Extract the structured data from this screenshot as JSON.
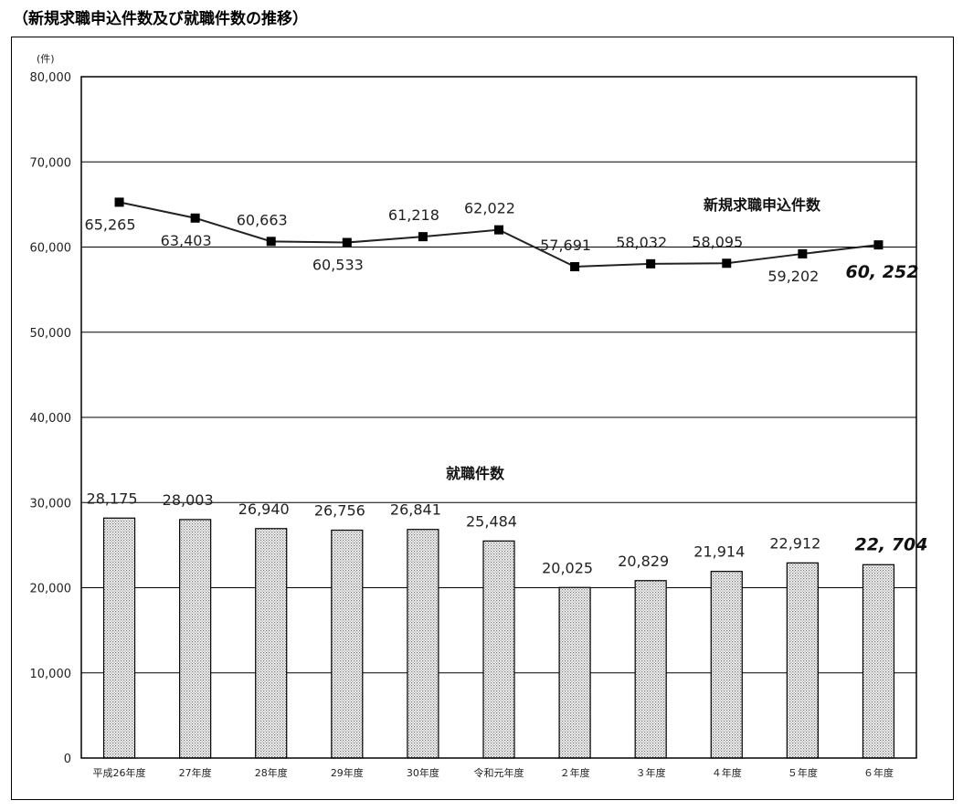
{
  "title": "（新規求職申込件数及び就職件数の推移）",
  "chart_data": {
    "type": "bar",
    "unit": "(件)",
    "categories": [
      "平成26年度",
      "27年度",
      "28年度",
      "29年度",
      "30年度",
      "令和元年度",
      "２年度",
      "３年度",
      "４年度",
      "５年度",
      "６年度"
    ],
    "ylim": [
      0,
      80000
    ],
    "yticks": [
      0,
      10000,
      20000,
      30000,
      40000,
      50000,
      60000,
      70000,
      80000
    ],
    "ytick_labels": [
      "0",
      "10,000",
      "20,000",
      "30,000",
      "40,000",
      "50,000",
      "60,000",
      "70,000",
      "80,000"
    ],
    "grid": true,
    "series": [
      {
        "name": "新規求職申込件数",
        "type": "line",
        "values": [
          65265,
          63403,
          60663,
          60533,
          61218,
          62022,
          57691,
          58032,
          58095,
          59202,
          60252
        ],
        "labels": [
          "65,265",
          "63,403",
          "60,663",
          "60,533",
          "61,218",
          "62,022",
          "57,691",
          "58,032",
          "58,095",
          "59,202",
          "60, 252"
        ]
      },
      {
        "name": "就職件数",
        "type": "bar",
        "values": [
          28175,
          28003,
          26940,
          26756,
          26841,
          25484,
          20025,
          20829,
          21914,
          22912,
          22704
        ],
        "labels": [
          "28,175",
          "28,003",
          "26,940",
          "26,756",
          "26,841",
          "25,484",
          "20,025",
          "20,829",
          "21,914",
          "22,912",
          "22, 704"
        ]
      }
    ]
  }
}
